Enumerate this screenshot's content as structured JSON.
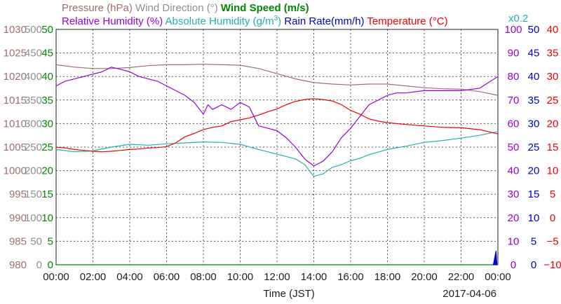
{
  "chart_data": {
    "type": "line",
    "date": "2017-04-06",
    "xlabel": "Time (JST)",
    "x_ticks": [
      "00:00",
      "02:00",
      "04:00",
      "06:00",
      "08:00",
      "10:00",
      "12:00",
      "14:00",
      "16:00",
      "18:00",
      "20:00",
      "22:00",
      "00:00"
    ],
    "legend_row1": [
      {
        "text": "Pressure (hPa)",
        "color": "#a07070"
      },
      {
        "text": "Wind Direction (°)",
        "color": "#909090"
      },
      {
        "text": "Wind Speed (m/s)",
        "color": "#008800"
      }
    ],
    "legend_row2": [
      {
        "text": "Relative Humidity (%)",
        "color": "#9900dd"
      },
      {
        "text": "Absolute Humidity (g/m",
        "sup": "3",
        "close": ")",
        "color": "#22b0b0"
      },
      {
        "text": "Rain Rate(mm/h)",
        "color": "#0000cc"
      },
      {
        "text": "Temperature (°C)",
        "color": "#ee0000"
      }
    ],
    "rain_multiplier": "x0.2",
    "rain_multiplier_color": "#22b0b0",
    "axes": {
      "pressure": {
        "ticks": [
          "1030",
          "1025",
          "1020",
          "1015",
          "1010",
          "1005",
          "1000",
          "995",
          "990",
          "985",
          "980"
        ],
        "range": [
          980,
          1030
        ],
        "color": "#a07070"
      },
      "wind_direction": {
        "ticks": [
          "500",
          "450",
          "400",
          "350",
          "300",
          "250",
          "200",
          "150",
          "100",
          "50",
          "0"
        ],
        "range": [
          0,
          500
        ],
        "color": "#909090"
      },
      "wind_speed": {
        "ticks": [
          "50",
          "45",
          "40",
          "35",
          "30",
          "25",
          "20",
          "15",
          "10",
          "5",
          "0"
        ],
        "range": [
          0,
          50
        ],
        "color": "#008800"
      },
      "relative_humidity": {
        "ticks": [
          "100",
          "90",
          "80",
          "70",
          "60",
          "50",
          "40",
          "30",
          "20",
          "10",
          "0"
        ],
        "range": [
          0,
          100
        ],
        "color": "#9900dd"
      },
      "rain_rate": {
        "ticks": [
          "50",
          "45",
          "40",
          "35",
          "30",
          "25",
          "20",
          "15",
          "10",
          "5",
          "0"
        ],
        "range": [
          0,
          50
        ],
        "color": "#0000cc"
      },
      "temperature": {
        "ticks": [
          "40",
          "35",
          "30",
          "25",
          "20",
          "15",
          "10",
          "5",
          "0",
          "−5",
          "−10"
        ],
        "range": [
          -10,
          40
        ],
        "color": "#ee0000"
      }
    },
    "series": [
      {
        "name": "Pressure (hPa)",
        "color": "#a07070",
        "axis": "pressure",
        "x": [
          0,
          1,
          2,
          3,
          4,
          5,
          6,
          7,
          8,
          9,
          10,
          11,
          12,
          13,
          14,
          15,
          16,
          17,
          18,
          19,
          20,
          21,
          22,
          23,
          24
        ],
        "y": [
          1022.5,
          1022.0,
          1021.7,
          1021.7,
          1021.9,
          1022.3,
          1022.5,
          1022.5,
          1022.6,
          1022.5,
          1022.4,
          1021.7,
          1020.6,
          1019.5,
          1018.7,
          1018.4,
          1018.2,
          1018.4,
          1018.4,
          1018.0,
          1017.6,
          1017.4,
          1017.3,
          1016.8,
          1016.0
        ]
      },
      {
        "name": "Wind Speed (m/s)",
        "color": "#008800",
        "axis": "wind_speed",
        "x": [
          0,
          24
        ],
        "y": [
          0,
          0
        ]
      },
      {
        "name": "Relative Humidity (%)",
        "color": "#9900dd",
        "axis": "relative_humidity",
        "x": [
          0,
          0.5,
          1,
          1.5,
          2,
          2.5,
          3,
          3.5,
          4,
          4.5,
          5,
          5.5,
          6,
          6.5,
          7,
          7.5,
          8,
          8.25,
          8.5,
          9,
          9.5,
          10,
          10.5,
          11,
          11.5,
          12,
          12.5,
          13,
          13.5,
          14,
          14.5,
          15,
          15.5,
          16,
          16.5,
          17,
          17.5,
          18,
          18.5,
          19,
          20,
          21,
          22,
          23,
          24
        ],
        "y": [
          76,
          78,
          79,
          80,
          81,
          82,
          84,
          83,
          82,
          80,
          79,
          78,
          76,
          74,
          72,
          69,
          64,
          68,
          66,
          68,
          66,
          69,
          67,
          59,
          58,
          57,
          54,
          50,
          45,
          42,
          44,
          48,
          54,
          58,
          63,
          68,
          70,
          72,
          73,
          73,
          74,
          74,
          74,
          75,
          80
        ]
      },
      {
        "name": "Absolute Humidity (g/m3)",
        "color": "#22b0b0",
        "axis": "wind_speed",
        "x": [
          0,
          1,
          2,
          3,
          4,
          5,
          6,
          7,
          8,
          9,
          10,
          11,
          12,
          12.5,
          13,
          13.5,
          14,
          14.5,
          15,
          15.5,
          16,
          16.5,
          17,
          18,
          19,
          20,
          21,
          22,
          23,
          24
        ],
        "y": [
          24.5,
          24.0,
          24.2,
          25.0,
          25.6,
          25.4,
          25.7,
          25.9,
          26.1,
          26.0,
          25.6,
          24.5,
          23.5,
          23.0,
          22.5,
          21.3,
          18.8,
          19.3,
          20.7,
          21.3,
          22.1,
          22.6,
          23.4,
          24.5,
          25.2,
          26.0,
          26.4,
          26.9,
          27.5,
          28.3
        ]
      },
      {
        "name": "Temperature (°C)",
        "color": "#ee0000",
        "axis": "temperature",
        "x": [
          0,
          0.5,
          1,
          1.5,
          2,
          2.5,
          3,
          3.5,
          4,
          4.5,
          5,
          5.5,
          6,
          6.5,
          7,
          7.5,
          8,
          8.5,
          9,
          9.5,
          10,
          10.5,
          11,
          11.5,
          12,
          12.5,
          13,
          13.5,
          14,
          14.5,
          15,
          15.5,
          16,
          16.5,
          17,
          17.5,
          18,
          19,
          20,
          21,
          22,
          23,
          24
        ],
        "y": [
          15.0,
          14.8,
          14.5,
          14.3,
          14.1,
          14.0,
          14.1,
          14.3,
          14.5,
          14.6,
          14.8,
          14.9,
          15.1,
          15.9,
          17.2,
          17.9,
          18.7,
          19.2,
          19.5,
          20.4,
          20.8,
          21.2,
          21.8,
          22.5,
          23.1,
          24.0,
          24.7,
          25.1,
          25.3,
          25.1,
          24.8,
          24.0,
          22.8,
          22.0,
          21.0,
          20.5,
          20.2,
          19.8,
          19.5,
          19.2,
          19.1,
          18.7,
          17.8
        ]
      },
      {
        "name": "Rain Rate (mm/h)",
        "color": "#0000cc",
        "axis": "rain_rate",
        "x": [
          23.75,
          23.82,
          23.9,
          23.95
        ],
        "y": [
          0,
          1.4,
          3.0,
          0
        ]
      }
    ]
  }
}
